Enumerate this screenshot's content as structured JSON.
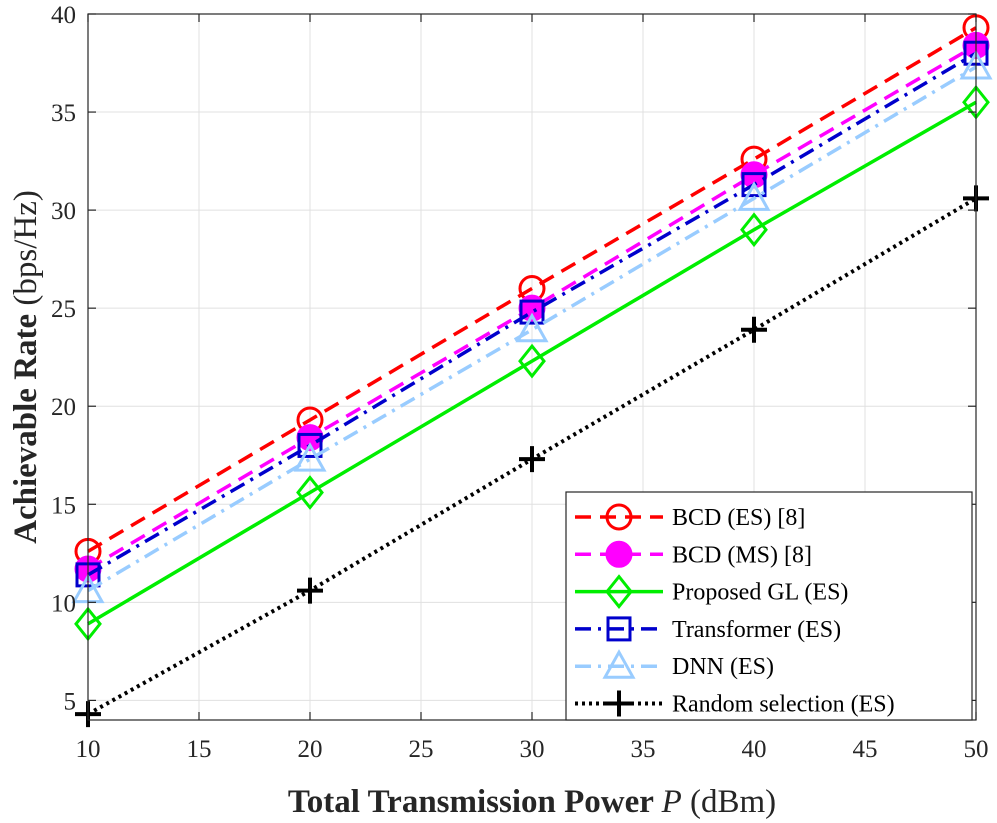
{
  "chart_data": {
    "type": "line",
    "title": "",
    "xlabel": {
      "bold": "Total Transmission Power ",
      "italic": "P",
      "rest": " (dBm)"
    },
    "ylabel": {
      "bold": "Achievable Rate",
      "rest": " (bps/Hz)"
    },
    "xlim": [
      10,
      50
    ],
    "ylim": [
      4,
      40
    ],
    "xticks": [
      10,
      15,
      20,
      25,
      30,
      35,
      40,
      45,
      50
    ],
    "yticks": [
      5,
      10,
      15,
      20,
      25,
      30,
      35,
      40
    ],
    "grid": true,
    "legend_position": "bottom-right",
    "x": [
      10,
      20,
      30,
      40,
      50
    ],
    "series": [
      {
        "name": "BCD (ES) [8]",
        "values": [
          12.6,
          19.3,
          26.0,
          32.6,
          39.3
        ],
        "color": "#ff0000",
        "dash": "dashed",
        "marker": "circle-open"
      },
      {
        "name": "BCD (MS) [8]",
        "values": [
          11.7,
          18.4,
          25.0,
          31.8,
          38.4
        ],
        "color": "#ff00ff",
        "dash": "dashed",
        "marker": "circle-filled"
      },
      {
        "name": "Proposed GL (ES)",
        "values": [
          8.9,
          15.6,
          22.3,
          29.0,
          35.5
        ],
        "color": "#00ee00",
        "dash": "solid",
        "marker": "diamond-open"
      },
      {
        "name": "Transformer (ES)",
        "values": [
          11.4,
          18.0,
          24.8,
          31.3,
          38.0
        ],
        "color": "#0000cc",
        "dash": "dashdot",
        "marker": "square-open"
      },
      {
        "name": "DNN (ES)",
        "values": [
          10.6,
          17.3,
          23.9,
          30.6,
          37.3
        ],
        "color": "#99ccff",
        "dash": "dashdot",
        "marker": "triangle-open"
      },
      {
        "name": "Random selection (ES)",
        "values": [
          4.3,
          10.6,
          17.3,
          23.9,
          30.6
        ],
        "color": "#000000",
        "dash": "dotted",
        "marker": "plus"
      }
    ]
  }
}
